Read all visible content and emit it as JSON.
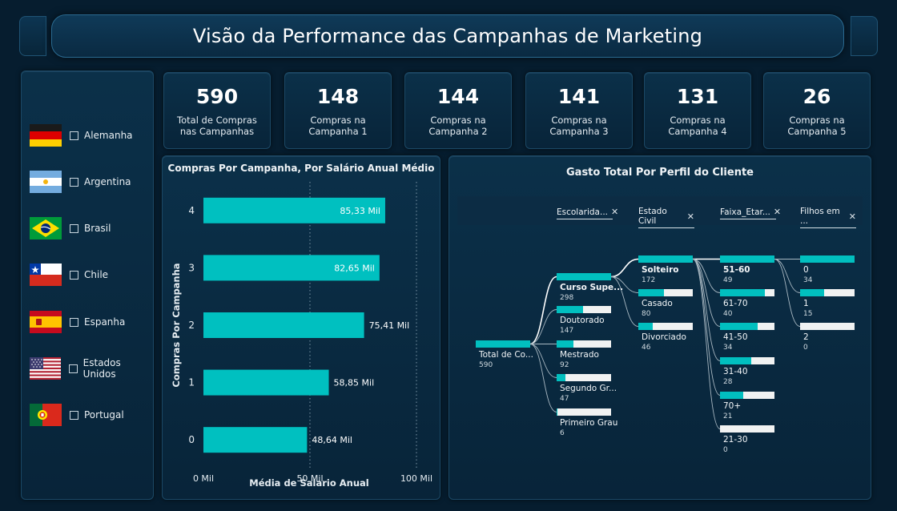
{
  "title": "Visão da Performance das Campanhas de Marketing",
  "colors": {
    "background": "#061d2f",
    "panel": "#0a2a42",
    "accent": "#00c0c0",
    "bar_track": "#f1f2f2"
  },
  "countries": [
    {
      "label": "Alemanha",
      "flag": "germany-flag-icon"
    },
    {
      "label": "Argentina",
      "flag": "argentina-flag-icon"
    },
    {
      "label": "Brasil",
      "flag": "brazil-flag-icon"
    },
    {
      "label": "Chile",
      "flag": "chile-flag-icon"
    },
    {
      "label": "Espanha",
      "flag": "spain-flag-icon"
    },
    {
      "label": "Estados Unidos",
      "flag": "usa-flag-icon"
    },
    {
      "label": "Portugal",
      "flag": "portugal-flag-icon"
    }
  ],
  "kpis": [
    {
      "value": "590",
      "label": "Total de Compras nas Campanhas"
    },
    {
      "value": "148",
      "label": "Compras na Campanha 1"
    },
    {
      "value": "144",
      "label": "Compras na Campanha 2"
    },
    {
      "value": "141",
      "label": "Compras na Campanha 3"
    },
    {
      "value": "131",
      "label": "Compras na Campanha 4"
    },
    {
      "value": "26",
      "label": "Compras na Campanha 5"
    }
  ],
  "chart_data": {
    "type": "bar",
    "orientation": "horizontal",
    "title": "Compras Por Campanha, Por Salário Anual Médio",
    "xlabel": "Média de Salario Anual",
    "ylabel": "Compras Por Campanha",
    "categories": [
      "4",
      "3",
      "2",
      "1",
      "0"
    ],
    "values": [
      85.33,
      82.65,
      75.41,
      58.85,
      48.64
    ],
    "data_labels": [
      "85,33 Mil",
      "82,65 Mil",
      "75,41 Mil",
      "58,85 Mil",
      "48,64 Mil"
    ],
    "xlim": [
      0,
      100
    ],
    "x_ticks": [
      "0 Mil",
      "50 Mil",
      "100 Mil"
    ],
    "color": "#00c0c0",
    "grid": "vertical dotted"
  },
  "tree": {
    "title": "Gasto Total Por Perfil do Cliente",
    "levels": [
      "Escolarida...",
      "Estado Civil",
      "Faixa_Etar...",
      "Filhos em ..."
    ],
    "root": {
      "label": "Total de Co...",
      "value": "590",
      "fraction": 1.0
    },
    "escolaridade": [
      {
        "label": "Curso Supe...",
        "value": "298",
        "fraction": 1.0,
        "selected": true
      },
      {
        "label": "Doutorado",
        "value": "147",
        "fraction": 0.49
      },
      {
        "label": "Mestrado",
        "value": "92",
        "fraction": 0.31
      },
      {
        "label": "Segundo Gr...",
        "value": "47",
        "fraction": 0.16
      },
      {
        "label": "Primeiro Grau",
        "value": "6",
        "fraction": 0.02
      }
    ],
    "estado_civil": [
      {
        "label": "Solteiro",
        "value": "172",
        "fraction": 1.0,
        "selected": true
      },
      {
        "label": "Casado",
        "value": "80",
        "fraction": 0.47
      },
      {
        "label": "Divorciado",
        "value": "46",
        "fraction": 0.27
      }
    ],
    "faixa_etaria": [
      {
        "label": "51-60",
        "value": "49",
        "fraction": 1.0,
        "selected": true
      },
      {
        "label": "61-70",
        "value": "40",
        "fraction": 0.82
      },
      {
        "label": "41-50",
        "value": "34",
        "fraction": 0.69
      },
      {
        "label": "31-40",
        "value": "28",
        "fraction": 0.57
      },
      {
        "label": "70+",
        "value": "21",
        "fraction": 0.43
      },
      {
        "label": "21-30",
        "value": "0",
        "fraction": 0.0
      }
    ],
    "filhos": [
      {
        "label": "0",
        "value": "34",
        "fraction": 1.0
      },
      {
        "label": "1",
        "value": "15",
        "fraction": 0.44
      },
      {
        "label": "2",
        "value": "0",
        "fraction": 0.0
      }
    ]
  }
}
